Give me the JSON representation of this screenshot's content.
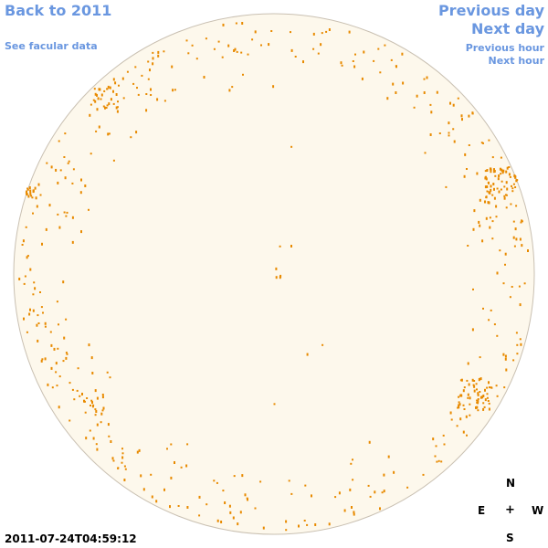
{
  "nav": {
    "back_label": "Back to 2011",
    "facular_label": "See facular data",
    "prev_day_label": "Previous day",
    "next_day_label": "Next day",
    "prev_hour_label": "Previous hour",
    "next_hour_label": "Next hour"
  },
  "timestamp": "2011-07-24T04:59:12",
  "compass": {
    "north": "N",
    "east": "E",
    "center": "+",
    "west": "W",
    "south": "S"
  },
  "colors": {
    "link": "#6a97e0",
    "disk_fill": "#fdf8ec",
    "disk_edge": "#c9c0b2",
    "feature": "#e88a00"
  }
}
